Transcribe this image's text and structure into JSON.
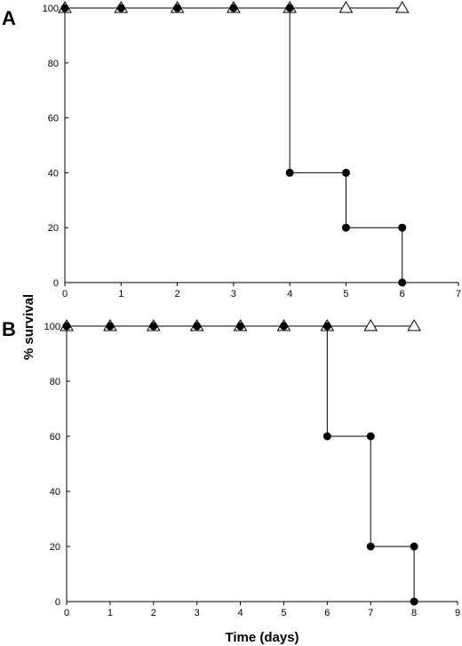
{
  "figure": {
    "ylabel": "% survival",
    "xlabel": "Time (days)"
  },
  "chart_data": [
    {
      "panel": "A",
      "type": "line",
      "step": true,
      "xlim": [
        0,
        7
      ],
      "ylim": [
        0,
        100
      ],
      "xticks": [
        0,
        1,
        2,
        3,
        4,
        5,
        6,
        7
      ],
      "yticks": [
        0,
        20,
        40,
        60,
        80,
        100
      ],
      "grid": false,
      "series": [
        {
          "marker": "open-triangle",
          "x": [
            0,
            1,
            2,
            3,
            4,
            5,
            6
          ],
          "y": [
            100,
            100,
            100,
            100,
            100,
            100,
            100
          ]
        },
        {
          "marker": "filled-circle",
          "x": [
            0,
            1,
            2,
            3,
            4,
            4,
            5,
            5,
            6,
            6
          ],
          "y": [
            100,
            100,
            100,
            100,
            100,
            40,
            40,
            20,
            20,
            0
          ]
        }
      ]
    },
    {
      "panel": "B",
      "type": "line",
      "step": true,
      "xlim": [
        0,
        9
      ],
      "ylim": [
        0,
        100
      ],
      "xticks": [
        0,
        1,
        2,
        3,
        4,
        5,
        6,
        7,
        8,
        9
      ],
      "yticks": [
        0,
        20,
        40,
        60,
        80,
        100
      ],
      "grid": false,
      "series": [
        {
          "marker": "open-triangle",
          "x": [
            0,
            1,
            2,
            3,
            4,
            5,
            6,
            7,
            8
          ],
          "y": [
            100,
            100,
            100,
            100,
            100,
            100,
            100,
            100,
            100
          ]
        },
        {
          "marker": "filled-circle",
          "x": [
            0,
            1,
            2,
            3,
            4,
            5,
            6,
            6,
            7,
            7,
            8,
            8
          ],
          "y": [
            100,
            100,
            100,
            100,
            100,
            100,
            100,
            60,
            60,
            20,
            20,
            0
          ]
        }
      ]
    }
  ]
}
